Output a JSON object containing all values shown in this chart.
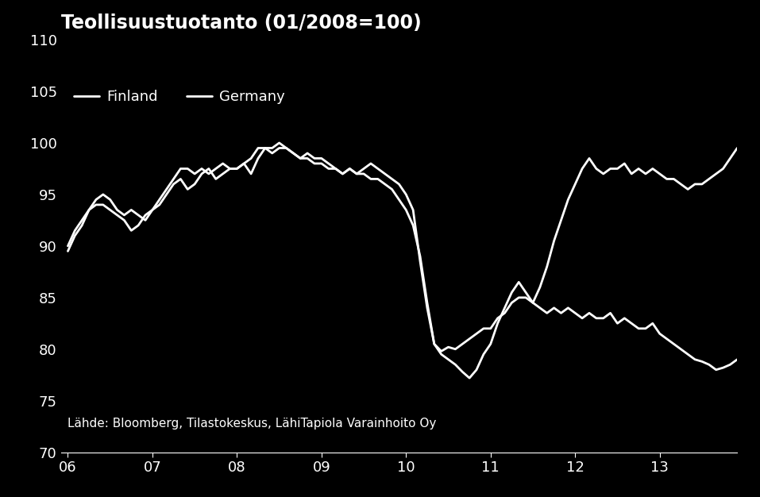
{
  "title": "Teollisuustuotanto (01/2008=100)",
  "background_color": "#000000",
  "text_color": "#ffffff",
  "line_color": "#ffffff",
  "ylim": [
    70,
    110
  ],
  "yticks": [
    70,
    75,
    80,
    85,
    90,
    95,
    100,
    105,
    110
  ],
  "source_text": "Lähde: Bloomberg, Tilastokeskus, LähiTapiola Varainhoito Oy",
  "legend_labels": [
    "Finland",
    "Germany"
  ],
  "xtick_labels": [
    "06",
    "07",
    "08",
    "09",
    "10",
    "11",
    "12",
    "13"
  ],
  "xtick_positions": [
    0,
    12,
    24,
    36,
    48,
    60,
    72,
    84
  ],
  "finland_x": [
    0,
    1,
    2,
    3,
    4,
    5,
    6,
    7,
    8,
    9,
    10,
    11,
    12,
    13,
    14,
    15,
    16,
    17,
    18,
    19,
    20,
    21,
    22,
    23,
    24,
    25,
    26,
    27,
    28,
    29,
    30,
    31,
    32,
    33,
    34,
    35,
    36,
    37,
    38,
    39,
    40,
    41,
    42,
    43,
    44,
    45,
    46,
    47,
    48,
    49,
    50,
    51,
    52,
    53,
    54,
    55,
    56,
    57,
    58,
    59,
    60,
    61,
    62,
    63,
    64,
    65,
    66,
    67,
    68,
    69,
    70,
    71,
    72,
    73,
    74,
    75,
    76,
    77,
    78,
    79,
    80,
    81,
    82,
    83,
    84,
    85,
    86,
    87,
    88,
    89,
    90,
    91,
    92,
    93,
    94,
    95
  ],
  "finland_y": [
    89.5,
    91.0,
    92.0,
    93.5,
    94.0,
    94.0,
    93.5,
    93.0,
    92.5,
    91.5,
    92.0,
    93.0,
    93.5,
    94.0,
    95.0,
    96.0,
    96.5,
    95.5,
    96.0,
    97.0,
    97.5,
    96.5,
    97.0,
    97.5,
    97.5,
    98.0,
    97.0,
    98.5,
    99.5,
    99.5,
    100.0,
    99.5,
    99.0,
    98.5,
    99.0,
    98.5,
    98.5,
    98.0,
    97.5,
    97.0,
    97.5,
    97.0,
    97.0,
    96.5,
    96.5,
    96.0,
    95.5,
    94.5,
    93.5,
    92.0,
    89.0,
    84.5,
    80.5,
    79.8,
    80.2,
    80.0,
    80.5,
    81.0,
    81.5,
    82.0,
    82.0,
    83.0,
    83.5,
    84.5,
    85.0,
    85.0,
    84.5,
    84.0,
    83.5,
    84.0,
    83.5,
    84.0,
    83.5,
    83.0,
    83.5,
    83.0,
    83.0,
    83.5,
    82.5,
    83.0,
    82.5,
    82.0,
    82.0,
    82.5,
    81.5,
    81.0,
    80.5,
    80.0,
    79.5,
    79.0,
    78.8,
    78.5,
    78.0,
    78.2,
    78.5,
    79.0
  ],
  "germany_x": [
    0,
    1,
    2,
    3,
    4,
    5,
    6,
    7,
    8,
    9,
    10,
    11,
    12,
    13,
    14,
    15,
    16,
    17,
    18,
    19,
    20,
    21,
    22,
    23,
    24,
    25,
    26,
    27,
    28,
    29,
    30,
    31,
    32,
    33,
    34,
    35,
    36,
    37,
    38,
    39,
    40,
    41,
    42,
    43,
    44,
    45,
    46,
    47,
    48,
    49,
    50,
    51,
    52,
    53,
    54,
    55,
    56,
    57,
    58,
    59,
    60,
    61,
    62,
    63,
    64,
    65,
    66,
    67,
    68,
    69,
    70,
    71,
    72,
    73,
    74,
    75,
    76,
    77,
    78,
    79,
    80,
    81,
    82,
    83,
    84,
    85,
    86,
    87,
    88,
    89,
    90,
    91,
    92,
    93,
    94,
    95
  ],
  "germany_y": [
    90.0,
    91.5,
    92.5,
    93.5,
    94.5,
    95.0,
    94.5,
    93.5,
    93.0,
    93.5,
    93.0,
    92.5,
    93.5,
    94.5,
    95.5,
    96.5,
    97.5,
    97.5,
    97.0,
    97.5,
    97.0,
    97.5,
    98.0,
    97.5,
    97.5,
    98.0,
    98.5,
    99.5,
    99.5,
    99.0,
    99.5,
    99.5,
    99.0,
    98.5,
    98.5,
    98.0,
    98.0,
    97.5,
    97.5,
    97.0,
    97.5,
    97.0,
    97.5,
    98.0,
    97.5,
    97.0,
    96.5,
    96.0,
    95.0,
    93.5,
    88.5,
    84.0,
    80.5,
    79.5,
    79.0,
    78.5,
    77.8,
    77.2,
    78.0,
    79.5,
    80.5,
    82.5,
    84.0,
    85.5,
    86.5,
    85.5,
    84.5,
    86.0,
    88.0,
    90.5,
    92.5,
    94.5,
    96.0,
    97.5,
    98.5,
    97.5,
    97.0,
    97.5,
    97.5,
    98.0,
    97.0,
    97.5,
    97.0,
    97.5,
    97.0,
    96.5,
    96.5,
    96.0,
    95.5,
    96.0,
    96.0,
    96.5,
    97.0,
    97.5,
    98.5,
    99.5
  ],
  "linewidth": 2.0,
  "title_fontsize": 17,
  "tick_fontsize": 13,
  "legend_fontsize": 13,
  "source_fontsize": 11
}
